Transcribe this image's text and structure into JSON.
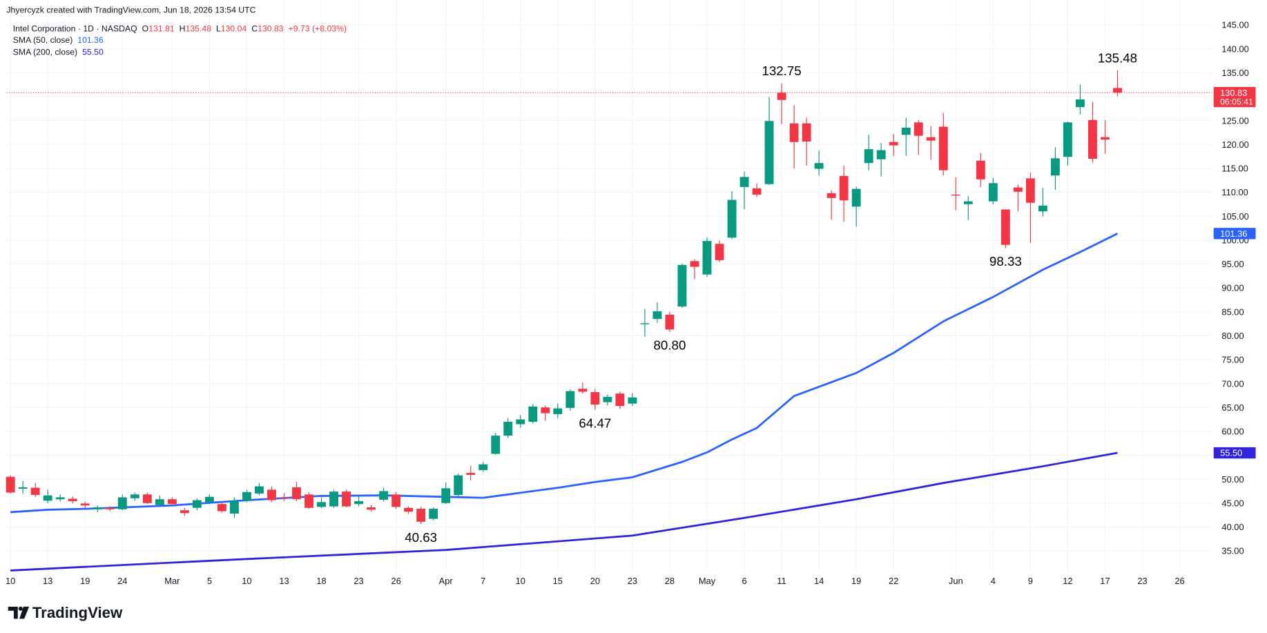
{
  "chart_data": {
    "type": "candlestick",
    "attribution": "Jhyercyzk created with TradingView.com, Jun 18, 2026 13:54 UTC",
    "brand": "TradingView",
    "legend": {
      "symbol": "Intel Corporation · 1D · NASDAQ",
      "ohlc": [
        {
          "key": "O",
          "value": 131.81
        },
        {
          "key": "H",
          "value": 135.48
        },
        {
          "key": "L",
          "value": 130.04
        },
        {
          "key": "C",
          "value": 130.83
        }
      ],
      "change": "+9.73 (+8.03%)",
      "indicators": [
        {
          "name": "SMA (50, close)",
          "value": "101.36",
          "color": "#2962ff"
        },
        {
          "name": "SMA (200, close)",
          "value": "55.50",
          "color": "#3023d9"
        }
      ]
    },
    "up_color": "#089981",
    "down_color": "#f23645",
    "grid": true,
    "ylim": [
      30.6,
      150.2
    ],
    "xlim": [
      -0.32,
      96.6
    ],
    "yticks": [
      {
        "value": 35,
        "label": "35.00"
      },
      {
        "value": 40,
        "label": "40.00"
      },
      {
        "value": 45,
        "label": "45.00"
      },
      {
        "value": 50,
        "label": "50.00"
      },
      {
        "value": 55,
        "label": "55.00"
      },
      {
        "value": 60,
        "label": "60.00"
      },
      {
        "value": 65,
        "label": "65.00"
      },
      {
        "value": 70,
        "label": "70.00"
      },
      {
        "value": 75,
        "label": "75.00"
      },
      {
        "value": 80,
        "label": "80.00"
      },
      {
        "value": 85,
        "label": "85.00"
      },
      {
        "value": 90,
        "label": "90.00"
      },
      {
        "value": 95,
        "label": "95.00"
      },
      {
        "value": 100,
        "label": "100.00"
      },
      {
        "value": 105,
        "label": "105.00"
      },
      {
        "value": 110,
        "label": "110.00"
      },
      {
        "value": 115,
        "label": "115.00"
      },
      {
        "value": 120,
        "label": "120.00"
      },
      {
        "value": 125,
        "label": "125.00"
      },
      {
        "value": 130,
        "label": "130.00"
      },
      {
        "value": 135,
        "label": "135.00"
      },
      {
        "value": 140,
        "label": "140.00"
      },
      {
        "value": 145,
        "label": "145.00"
      }
    ],
    "xticks": [
      {
        "value": 0,
        "label": "10"
      },
      {
        "value": 3,
        "label": "13"
      },
      {
        "value": 6,
        "label": "19"
      },
      {
        "value": 9,
        "label": "24"
      },
      {
        "value": 13,
        "label": "Mar"
      },
      {
        "value": 16,
        "label": "5"
      },
      {
        "value": 19,
        "label": "10"
      },
      {
        "value": 22,
        "label": "13"
      },
      {
        "value": 25,
        "label": "18"
      },
      {
        "value": 28,
        "label": "23"
      },
      {
        "value": 31,
        "label": "26"
      },
      {
        "value": 35,
        "label": "Apr"
      },
      {
        "value": 38,
        "label": "7"
      },
      {
        "value": 41,
        "label": "10"
      },
      {
        "value": 44,
        "label": "15"
      },
      {
        "value": 47,
        "label": "20"
      },
      {
        "value": 50,
        "label": "23"
      },
      {
        "value": 53,
        "label": "28"
      },
      {
        "value": 56,
        "label": "May"
      },
      {
        "value": 59,
        "label": "6"
      },
      {
        "value": 62,
        "label": "11"
      },
      {
        "value": 65,
        "label": "14"
      },
      {
        "value": 68,
        "label": "19"
      },
      {
        "value": 71,
        "label": "22"
      },
      {
        "value": 76,
        "label": "Jun"
      },
      {
        "value": 79,
        "label": "4"
      },
      {
        "value": 82,
        "label": "9"
      },
      {
        "value": 85,
        "label": "12"
      },
      {
        "value": 88,
        "label": "17"
      },
      {
        "value": 91,
        "label": "23"
      },
      {
        "value": 94,
        "label": "26"
      }
    ],
    "candles": [
      {
        "open": 50.5,
        "high": 50.8,
        "low": 47,
        "close": 47.2
      },
      {
        "open": 48,
        "high": 49.6,
        "low": 47,
        "close": 48.3
      },
      {
        "open": 48.2,
        "high": 49.2,
        "low": 46.3,
        "close": 46.7
      },
      {
        "open": 45.5,
        "high": 47.8,
        "low": 45,
        "close": 46.6
      },
      {
        "open": 45.8,
        "high": 46.8,
        "low": 45.3,
        "close": 46.2
      },
      {
        "open": 45.9,
        "high": 46.4,
        "low": 44.9,
        "close": 45.4
      },
      {
        "open": 44.9,
        "high": 45.3,
        "low": 43.9,
        "close": 44.5
      },
      {
        "open": 43.7,
        "high": 44.5,
        "low": 43.1,
        "close": 44.1
      },
      {
        "open": 44,
        "high": 44.3,
        "low": 43.3,
        "close": 43.7
      },
      {
        "open": 43.7,
        "high": 46.8,
        "low": 43.5,
        "close": 46.2
      },
      {
        "open": 46,
        "high": 47.2,
        "low": 45.5,
        "close": 46.8
      },
      {
        "open": 46.8,
        "high": 47.2,
        "low": 44.8,
        "close": 45
      },
      {
        "open": 44.6,
        "high": 46.6,
        "low": 44.3,
        "close": 45.8
      },
      {
        "open": 45.8,
        "high": 46.2,
        "low": 44.5,
        "close": 44.8
      },
      {
        "open": 43.5,
        "high": 44,
        "low": 42.3,
        "close": 42.9
      },
      {
        "open": 44,
        "high": 46,
        "low": 43.5,
        "close": 45.6
      },
      {
        "open": 45.2,
        "high": 46.8,
        "low": 44.8,
        "close": 46.3
      },
      {
        "open": 44.8,
        "high": 45.2,
        "low": 43,
        "close": 43.3
      },
      {
        "open": 42.8,
        "high": 46.2,
        "low": 41.9,
        "close": 45.5
      },
      {
        "open": 45.5,
        "high": 47.8,
        "low": 45.2,
        "close": 47.3
      },
      {
        "open": 47,
        "high": 49.2,
        "low": 46.6,
        "close": 48.5
      },
      {
        "open": 47.8,
        "high": 48.5,
        "low": 45.2,
        "close": 45.6
      },
      {
        "open": 46.2,
        "high": 47.1,
        "low": 45.4,
        "close": 46
      },
      {
        "open": 48.3,
        "high": 49.4,
        "low": 45.4,
        "close": 45.8
      },
      {
        "open": 46.8,
        "high": 47.3,
        "low": 43.8,
        "close": 44
      },
      {
        "open": 44.2,
        "high": 46.2,
        "low": 43.9,
        "close": 45.2
      },
      {
        "open": 44.3,
        "high": 47.8,
        "low": 44,
        "close": 47.4
      },
      {
        "open": 47.4,
        "high": 47.8,
        "low": 44.1,
        "close": 44.3
      },
      {
        "open": 44.8,
        "high": 46.5,
        "low": 44.3,
        "close": 45.4
      },
      {
        "open": 44.1,
        "high": 44.6,
        "low": 43.2,
        "close": 43.6
      },
      {
        "open": 45.7,
        "high": 48.2,
        "low": 45.3,
        "close": 47.5
      },
      {
        "open": 46.8,
        "high": 47.3,
        "low": 43.8,
        "close": 44.2
      },
      {
        "open": 44,
        "high": 44.3,
        "low": 42.7,
        "close": 43.2
      },
      {
        "open": 43.8,
        "high": 44.2,
        "low": 40.63,
        "close": 41.1,
        "low_label": "40.63"
      },
      {
        "open": 41.7,
        "high": 44.1,
        "low": 41.4,
        "close": 43.8
      },
      {
        "open": 45,
        "high": 49.3,
        "low": 44.8,
        "close": 48.1
      },
      {
        "open": 46.7,
        "high": 51.2,
        "low": 46.2,
        "close": 50.8
      },
      {
        "open": 51.3,
        "high": 52.8,
        "low": 49.7,
        "close": 50.9
      },
      {
        "open": 51.9,
        "high": 53.6,
        "low": 51.5,
        "close": 53.1
      },
      {
        "open": 55.3,
        "high": 59.7,
        "low": 55.1,
        "close": 59.1
      },
      {
        "open": 59.1,
        "high": 62.8,
        "low": 58.6,
        "close": 62
      },
      {
        "open": 61.5,
        "high": 63.4,
        "low": 60.8,
        "close": 62.5
      },
      {
        "open": 62,
        "high": 65.7,
        "low": 61.6,
        "close": 65.2
      },
      {
        "open": 65,
        "high": 65.4,
        "low": 62.2,
        "close": 63.8
      },
      {
        "open": 63.6,
        "high": 65.8,
        "low": 62.8,
        "close": 64.8
      },
      {
        "open": 64.9,
        "high": 68.8,
        "low": 64.3,
        "close": 68.4
      },
      {
        "open": 68.9,
        "high": 70.2,
        "low": 67.9,
        "close": 68.3
      },
      {
        "open": 68.2,
        "high": 68.9,
        "low": 64.47,
        "close": 65.6,
        "low_label": "64.47"
      },
      {
        "open": 66.1,
        "high": 67.7,
        "low": 65.4,
        "close": 67.2
      },
      {
        "open": 67.9,
        "high": 68.3,
        "low": 64.7,
        "close": 65.3
      },
      {
        "open": 65.8,
        "high": 68,
        "low": 65.3,
        "close": 67.1
      },
      {
        "open": 82.4,
        "high": 85.6,
        "low": 79.8,
        "close": 82.6
      },
      {
        "open": 83.5,
        "high": 87,
        "low": 82.7,
        "close": 85.1
      },
      {
        "open": 84.4,
        "high": 85,
        "low": 80.8,
        "close": 81.3,
        "low_label": "80.80"
      },
      {
        "open": 86.1,
        "high": 95.1,
        "low": 85.8,
        "close": 94.8
      },
      {
        "open": 95.6,
        "high": 96,
        "low": 91.8,
        "close": 94.4
      },
      {
        "open": 92.8,
        "high": 100.6,
        "low": 92.3,
        "close": 99.8
      },
      {
        "open": 99.2,
        "high": 99.9,
        "low": 95.4,
        "close": 95.8
      },
      {
        "open": 100.5,
        "high": 110.2,
        "low": 100.2,
        "close": 108.4
      },
      {
        "open": 111.1,
        "high": 114.3,
        "low": 106.5,
        "close": 113.2
      },
      {
        "open": 110.8,
        "high": 111.8,
        "low": 109,
        "close": 109.5
      },
      {
        "open": 111.7,
        "high": 129.9,
        "low": 111.5,
        "close": 124.9
      },
      {
        "open": 130.8,
        "high": 132.75,
        "low": 124.2,
        "close": 129.3,
        "high_label": "132.75"
      },
      {
        "open": 124.4,
        "high": 128.2,
        "low": 115,
        "close": 120.5
      },
      {
        "open": 124.4,
        "high": 125.6,
        "low": 115.6,
        "close": 120.6
      },
      {
        "open": 114.9,
        "high": 118.7,
        "low": 113.5,
        "close": 116.1
      },
      {
        "open": 109.8,
        "high": 110.4,
        "low": 104.3,
        "close": 108.8
      },
      {
        "open": 113.4,
        "high": 115.6,
        "low": 103.8,
        "close": 108.3
      },
      {
        "open": 107,
        "high": 111.2,
        "low": 102.8,
        "close": 110.7
      },
      {
        "open": 116.1,
        "high": 122,
        "low": 114.6,
        "close": 119
      },
      {
        "open": 116.9,
        "high": 120.3,
        "low": 113.3,
        "close": 118.8
      },
      {
        "open": 120.5,
        "high": 122.2,
        "low": 117.6,
        "close": 119.8
      },
      {
        "open": 122,
        "high": 125.6,
        "low": 117.6,
        "close": 123.5
      },
      {
        "open": 124.6,
        "high": 125.1,
        "low": 117.8,
        "close": 121.8
      },
      {
        "open": 121.5,
        "high": 123.8,
        "low": 116.8,
        "close": 120.8
      },
      {
        "open": 123.7,
        "high": 126.6,
        "low": 113.5,
        "close": 114.6
      },
      {
        "open": 109.5,
        "high": 113.1,
        "low": 106.2,
        "close": 109.3
      },
      {
        "open": 107.5,
        "high": 109.2,
        "low": 104.2,
        "close": 108.1
      },
      {
        "open": 116.6,
        "high": 118.2,
        "low": 111.1,
        "close": 112.7
      },
      {
        "open": 108.1,
        "high": 113,
        "low": 107.5,
        "close": 111.9
      },
      {
        "open": 106.4,
        "high": 106.4,
        "low": 98.33,
        "close": 99,
        "low_label": "98.33"
      },
      {
        "open": 111,
        "high": 111.6,
        "low": 106,
        "close": 110.1
      },
      {
        "open": 112.9,
        "high": 114.1,
        "low": 99.4,
        "close": 107.8
      },
      {
        "open": 106,
        "high": 110.9,
        "low": 105,
        "close": 107.2
      },
      {
        "open": 113.5,
        "high": 119.4,
        "low": 110.5,
        "close": 117.1
      },
      {
        "open": 117.4,
        "high": 124.8,
        "low": 115.6,
        "close": 124.6
      },
      {
        "open": 127.8,
        "high": 132.5,
        "low": 126.3,
        "close": 129.4
      },
      {
        "open": 125.1,
        "high": 128.9,
        "low": 116.1,
        "close": 117
      },
      {
        "open": 121.5,
        "high": 125.1,
        "low": 118.1,
        "close": 121
      },
      {
        "open": 131.81,
        "high": 135.48,
        "low": 130.04,
        "close": 130.83,
        "high_label": "135.48"
      }
    ],
    "series": [
      {
        "name": "SMA (50, close)",
        "color": "#2962ff",
        "x": [
          0,
          3,
          6,
          13,
          19,
          25,
          30,
          35,
          38,
          40,
          44,
          47,
          50,
          54,
          56,
          58,
          60,
          63,
          68,
          71,
          75,
          79,
          83,
          86,
          89
        ],
        "values": [
          43.1,
          43.6,
          43.8,
          44.5,
          45.6,
          46.5,
          46.6,
          46.3,
          46.1,
          46.8,
          48.2,
          49.4,
          50.4,
          53.6,
          55.6,
          58.3,
          60.7,
          67.4,
          72.2,
          76.4,
          83,
          88.1,
          93.8,
          97.5,
          101.36
        ]
      },
      {
        "name": "SMA (200, close)",
        "color": "#3023d9",
        "x": [
          0,
          19,
          35,
          50,
          59,
          68,
          75,
          83,
          89
        ],
        "values": [
          30.9,
          33.3,
          35.2,
          38.2,
          41.9,
          45.8,
          49.2,
          52.7,
          55.5
        ]
      }
    ],
    "price_tags": [
      {
        "value": 130.83,
        "countdown": "06:05:41",
        "color": "#f23645",
        "line": true
      },
      {
        "value": 101.36,
        "color": "#2962ff"
      },
      {
        "value": 55.5,
        "label": "55.50",
        "color": "#3023d9"
      }
    ]
  }
}
